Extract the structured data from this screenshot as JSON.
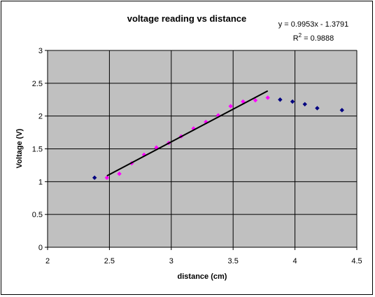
{
  "chart_data": {
    "type": "scatter",
    "title": "voltage reading vs distance",
    "xlabel": "distance (cm)",
    "ylabel": "Voltage (V)",
    "xlim": [
      2,
      4.5
    ],
    "ylim": [
      0,
      3
    ],
    "xticks": [
      "2",
      "2.5",
      "3",
      "3.5",
      "4",
      "4.5"
    ],
    "yticks": [
      "0",
      "0.5",
      "1",
      "1.5",
      "2",
      "2.5",
      "3"
    ],
    "grid": true,
    "plot_background": "#c0c0c0",
    "series": [
      {
        "color": "#000080",
        "marker": "diamond",
        "points": [
          [
            2.38,
            1.06
          ],
          [
            3.88,
            2.25
          ],
          [
            3.98,
            2.22
          ],
          [
            4.08,
            2.18
          ],
          [
            4.18,
            2.12
          ],
          [
            4.38,
            2.09
          ]
        ]
      },
      {
        "color": "#ff00ff",
        "marker": "diamond",
        "points": [
          [
            2.48,
            1.06
          ],
          [
            2.58,
            1.12
          ],
          [
            2.68,
            1.28
          ],
          [
            2.78,
            1.41
          ],
          [
            2.88,
            1.52
          ],
          [
            2.98,
            1.59
          ],
          [
            3.08,
            1.69
          ],
          [
            3.18,
            1.81
          ],
          [
            3.28,
            1.91
          ],
          [
            3.38,
            2.01
          ],
          [
            3.48,
            2.15
          ],
          [
            3.58,
            2.22
          ],
          [
            3.68,
            2.24
          ],
          [
            3.78,
            2.28
          ]
        ]
      }
    ],
    "trendline": {
      "color": "#000000",
      "slope": 0.9953,
      "intercept": -1.3791,
      "x_range": [
        2.48,
        3.78
      ],
      "equation": "y = 0.9953x - 1.3791",
      "r_squared_prefix": "R",
      "r_squared_sup": "2",
      "r_squared_value": " = 0.9888"
    }
  }
}
